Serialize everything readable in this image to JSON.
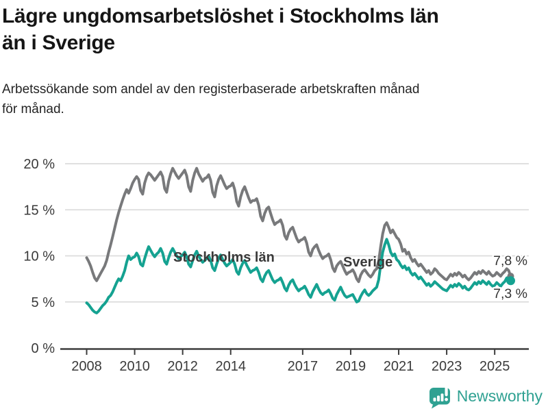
{
  "header": {
    "title_line1": "Lägre ungdomsarbetslöshet i Stockholms län",
    "title_line2": "än i Sverige",
    "subtitle_line1": "Arbetssökande som andel av den registerbaserade arbetskraften månad",
    "subtitle_line2": "för månad."
  },
  "chart_data": {
    "type": "line",
    "title": "Lägre ungdomsarbetslöshet i Stockholms län än i Sverige",
    "subtitle": "Arbetssökande som andel av den registerbaserade arbetskraften månad för månad.",
    "x_unit": "month",
    "x_start": "2008-01",
    "x_end": "2025-09",
    "xlim": [
      2008,
      2025.75
    ],
    "ylim": [
      0,
      21
    ],
    "grid": "horizontal",
    "legend_position": "inline-labels",
    "x_ticks": [
      2008,
      2010,
      2012,
      2014,
      2017,
      2019,
      2021,
      2023,
      2025
    ],
    "y_ticks": [
      0,
      5,
      10,
      15,
      20
    ],
    "y_tick_suffix": " %",
    "gridline_color": "#dcdcdc",
    "axis_color": "#3d3d3d",
    "series": [
      {
        "name": "Sverige",
        "color": "#78797b",
        "end_label": "7,8 %",
        "end_value": 7.8,
        "values": [
          9.8,
          9.4,
          8.9,
          8.2,
          7.6,
          7.3,
          7.7,
          8.1,
          8.5,
          8.9,
          9.5,
          10.4,
          11.2,
          12.1,
          13.0,
          13.9,
          14.7,
          15.4,
          16.1,
          16.7,
          17.2,
          16.8,
          17.3,
          17.9,
          18.3,
          18.6,
          18.3,
          17.1,
          16.7,
          17.9,
          18.6,
          19.0,
          18.8,
          18.5,
          18.2,
          18.5,
          18.8,
          19.1,
          18.6,
          17.3,
          16.9,
          18.1,
          18.9,
          19.5,
          19.1,
          18.7,
          18.4,
          18.7,
          19.0,
          19.3,
          18.7,
          17.5,
          17.0,
          18.2,
          19.0,
          19.5,
          18.9,
          18.5,
          18.1,
          18.4,
          18.5,
          18.8,
          18.2,
          16.9,
          16.4,
          17.6,
          18.3,
          18.7,
          18.2,
          17.7,
          17.3,
          17.5,
          17.6,
          17.9,
          17.2,
          15.9,
          15.4,
          16.4,
          17.1,
          17.5,
          16.9,
          16.3,
          15.8,
          16.0,
          16.0,
          16.2,
          15.5,
          14.3,
          13.8,
          14.6,
          15.1,
          15.3,
          14.6,
          13.9,
          13.4,
          13.6,
          13.7,
          13.9,
          13.3,
          12.2,
          11.8,
          12.5,
          12.9,
          13.1,
          12.5,
          11.9,
          11.5,
          11.7,
          11.8,
          12.0,
          11.4,
          10.4,
          10.0,
          10.7,
          11.0,
          11.2,
          10.6,
          10.1,
          9.7,
          9.9,
          10.0,
          10.2,
          9.6,
          8.7,
          8.3,
          8.9,
          9.2,
          9.4,
          8.9,
          8.4,
          8.0,
          8.2,
          8.3,
          8.5,
          8.1,
          7.5,
          7.2,
          7.9,
          8.3,
          8.5,
          8.2,
          7.9,
          7.7,
          8.0,
          8.4,
          8.6,
          9.4,
          11.0,
          12.4,
          13.3,
          13.6,
          13.1,
          12.5,
          12.8,
          12.4,
          12.0,
          11.8,
          11.3,
          10.5,
          10.7,
          10.2,
          10.4,
          9.8,
          9.4,
          9.6,
          9.2,
          8.9,
          9.1,
          8.8,
          8.5,
          8.2,
          8.4,
          8.0,
          8.2,
          8.6,
          8.4,
          8.1,
          7.9,
          7.7,
          7.5,
          7.4,
          7.7,
          8.0,
          7.8,
          8.1,
          7.9,
          8.2,
          8.0,
          7.7,
          7.9,
          7.6,
          7.4,
          7.6,
          7.9,
          8.2,
          8.0,
          8.3,
          8.1,
          8.4,
          8.2,
          8.0,
          8.3,
          8.0,
          7.8,
          7.9,
          8.2,
          8.0,
          7.8,
          8.1,
          8.3,
          8.6,
          8.4,
          7.8
        ]
      },
      {
        "name": "Stockholms län",
        "color": "#15a291",
        "end_label": "7,3 %",
        "end_value": 7.3,
        "values": [
          4.9,
          4.7,
          4.4,
          4.1,
          3.9,
          3.8,
          4.0,
          4.3,
          4.6,
          4.8,
          5.1,
          5.5,
          5.7,
          6.1,
          6.6,
          7.1,
          7.5,
          7.3,
          7.8,
          8.4,
          9.3,
          10.0,
          9.6,
          9.8,
          9.9,
          10.3,
          9.9,
          9.1,
          8.9,
          9.7,
          10.4,
          11.0,
          10.6,
          10.2,
          9.9,
          10.2,
          10.4,
          10.8,
          10.3,
          9.4,
          9.1,
          9.8,
          10.4,
          10.8,
          10.4,
          10.0,
          9.7,
          9.9,
          10.1,
          10.4,
          9.9,
          9.1,
          8.8,
          9.5,
          10.1,
          10.5,
          10.0,
          9.6,
          9.3,
          9.5,
          9.7,
          10.0,
          9.5,
          8.7,
          8.4,
          9.1,
          9.7,
          10.1,
          9.6,
          9.2,
          8.9,
          9.1,
          9.3,
          9.6,
          9.1,
          8.3,
          8.0,
          8.7,
          9.2,
          9.5,
          9.0,
          8.6,
          8.2,
          8.4,
          8.5,
          8.7,
          8.2,
          7.5,
          7.2,
          7.8,
          8.2,
          8.4,
          7.9,
          7.4,
          7.1,
          7.3,
          7.4,
          7.6,
          7.1,
          6.5,
          6.2,
          6.8,
          7.2,
          7.4,
          6.9,
          6.5,
          6.2,
          6.4,
          6.5,
          6.7,
          6.3,
          5.8,
          5.5,
          6.1,
          6.5,
          6.9,
          6.4,
          6.0,
          5.8,
          6.0,
          6.1,
          6.3,
          5.9,
          5.4,
          5.2,
          5.8,
          6.2,
          6.6,
          6.1,
          5.7,
          5.5,
          5.6,
          5.7,
          5.8,
          5.4,
          5.0,
          5.1,
          5.6,
          6.0,
          6.3,
          5.9,
          5.7,
          5.9,
          6.2,
          6.4,
          6.6,
          7.4,
          9.0,
          10.4,
          11.2,
          11.8,
          11.2,
          10.4,
          10.0,
          10.2,
          9.6,
          9.4,
          9.0,
          8.7,
          8.9,
          8.5,
          8.7,
          8.2,
          7.9,
          8.1,
          7.8,
          7.5,
          7.7,
          7.4,
          7.1,
          6.8,
          7.0,
          6.7,
          6.9,
          7.2,
          7.0,
          6.8,
          6.6,
          6.4,
          6.3,
          6.2,
          6.5,
          6.8,
          6.6,
          6.9,
          6.7,
          7.0,
          6.8,
          6.5,
          6.7,
          6.4,
          6.3,
          6.5,
          6.8,
          7.1,
          6.9,
          7.2,
          7.0,
          7.3,
          7.1,
          6.9,
          7.2,
          6.9,
          6.7,
          6.8,
          7.1,
          6.9,
          6.7,
          7.0,
          7.2,
          7.6,
          7.7,
          7.3
        ]
      }
    ]
  },
  "footer": {
    "brand": "Newsworthy",
    "brand_color": "#2fa192"
  }
}
